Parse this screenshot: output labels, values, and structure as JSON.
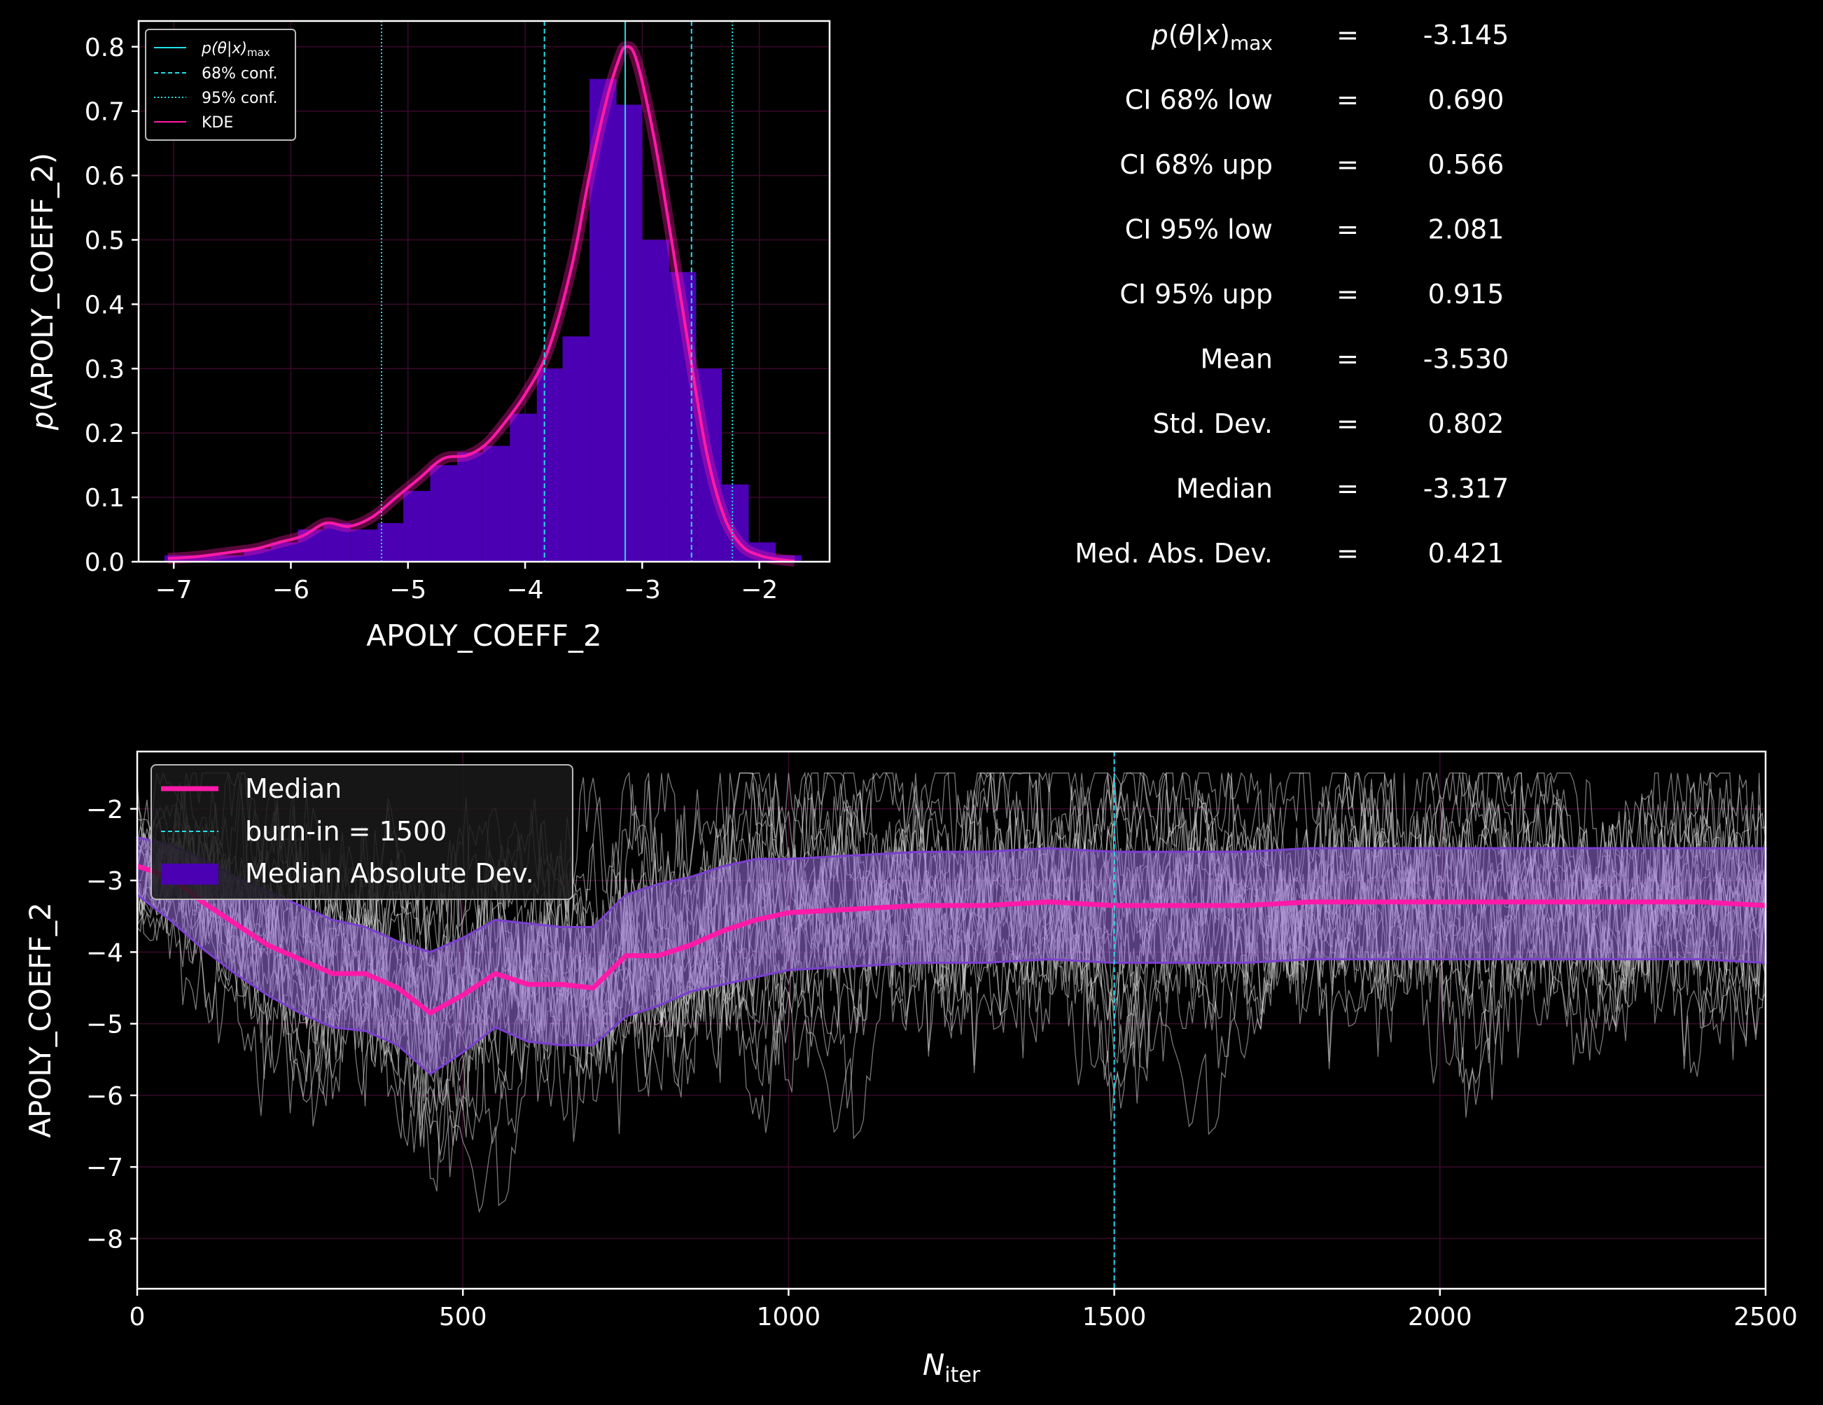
{
  "colors": {
    "background": "#000000",
    "foreground": "#ffffff",
    "kde": "#ff1aa8",
    "hist_fill": "#4b00b4",
    "conf_lines": "#20e0e8",
    "median_line": "#ff1aa8",
    "mad_band": "#9a6fe0",
    "mad_band_dark": "#3d0a80",
    "walkers": "#d8d8d8"
  },
  "stats": [
    {
      "label_html": "p(θ|x)<tspan baseline-shift=\"-30%\" font-size=\"28\">max</tspan>",
      "label": "p(θ|x)max",
      "eq": "=",
      "value": "-3.145"
    },
    {
      "label": "CI 68% low",
      "eq": "=",
      "value": "0.690"
    },
    {
      "label": "CI 68% upp",
      "eq": "=",
      "value": "0.566"
    },
    {
      "label": "CI 95% low",
      "eq": "=",
      "value": "2.081"
    },
    {
      "label": "CI 95% upp",
      "eq": "=",
      "value": "0.915"
    },
    {
      "label": "Mean",
      "eq": "=",
      "value": "-3.530"
    },
    {
      "label": "Std.  Dev.",
      "eq": "=",
      "value": "0.802"
    },
    {
      "label": "Median",
      "eq": "=",
      "value": "-3.317"
    },
    {
      "label": "Med. Abs. Dev.",
      "eq": "=",
      "value": "0.421"
    }
  ],
  "chart_data": [
    {
      "type": "bar",
      "subtype": "histogram_with_kde",
      "xlabel": "APOLY_COEFF_2",
      "ylabel": "p(APOLY_COEFF_2)",
      "xlim": [
        -7.3,
        -1.4
      ],
      "ylim": [
        0.0,
        0.84
      ],
      "xticks": [
        -7,
        -6,
        -5,
        -4,
        -3,
        -2
      ],
      "xtick_labels": [
        "−7",
        "−6",
        "−5",
        "−4",
        "−3",
        "−2"
      ],
      "yticks": [
        0.0,
        0.1,
        0.2,
        0.3,
        0.4,
        0.5,
        0.6,
        0.7,
        0.8
      ],
      "ytick_labels": [
        "0.0",
        "0.1",
        "0.2",
        "0.3",
        "0.4",
        "0.5",
        "0.6",
        "0.7",
        "0.8"
      ],
      "grid": true,
      "legend_placement": "top-left",
      "legend": [
        {
          "name": "p(θ|x)max",
          "style": "solid-cyan"
        },
        {
          "name": "68% conf.",
          "style": "dashed-cyan"
        },
        {
          "name": "95% conf.",
          "style": "dotted-cyan"
        },
        {
          "name": "KDE",
          "style": "solid-magenta"
        }
      ],
      "hist_bins": {
        "edges": [
          -7.08,
          -6.85,
          -6.62,
          -6.4,
          -6.17,
          -5.94,
          -5.72,
          -5.49,
          -5.26,
          -5.04,
          -4.81,
          -4.58,
          -4.36,
          -4.13,
          -3.9,
          -3.68,
          -3.45,
          -3.22,
          -3.0,
          -2.77,
          -2.54,
          -2.32,
          -2.09,
          -1.86,
          -1.64
        ],
        "values": [
          0.01,
          0.01,
          0.01,
          0.02,
          0.03,
          0.05,
          0.06,
          0.05,
          0.06,
          0.11,
          0.15,
          0.17,
          0.18,
          0.23,
          0.3,
          0.35,
          0.75,
          0.71,
          0.5,
          0.45,
          0.3,
          0.12,
          0.03,
          0.01
        ]
      },
      "kde": {
        "x": [
          -7.05,
          -6.8,
          -6.5,
          -6.3,
          -6.1,
          -5.9,
          -5.7,
          -5.5,
          -5.3,
          -5.1,
          -4.9,
          -4.7,
          -4.5,
          -4.35,
          -4.2,
          -4.0,
          -3.8,
          -3.6,
          -3.45,
          -3.3,
          -3.2,
          -3.14,
          -3.05,
          -2.9,
          -2.75,
          -2.6,
          -2.45,
          -2.3,
          -2.15,
          -2.0,
          -1.85,
          -1.7
        ],
        "y": [
          0.005,
          0.008,
          0.015,
          0.02,
          0.03,
          0.04,
          0.06,
          0.055,
          0.07,
          0.1,
          0.13,
          0.16,
          0.165,
          0.18,
          0.21,
          0.26,
          0.33,
          0.46,
          0.6,
          0.72,
          0.78,
          0.8,
          0.78,
          0.66,
          0.5,
          0.33,
          0.17,
          0.07,
          0.025,
          0.01,
          0.004,
          0.001
        ]
      },
      "vlines": {
        "max": -3.145,
        "conf68": [
          -3.835,
          -2.579
        ],
        "conf95": [
          -5.226,
          -2.23
        ]
      }
    },
    {
      "type": "line",
      "subtype": "mcmc_trace",
      "xlabel": "N_iter",
      "ylabel": "APOLY_COEFF_2",
      "xlim": [
        0,
        2500
      ],
      "ylim": [
        -8.7,
        -1.2
      ],
      "xticks": [
        0,
        500,
        1000,
        1500,
        2000,
        2500
      ],
      "xtick_labels": [
        "0",
        "500",
        "1000",
        "1500",
        "2000",
        "2500"
      ],
      "yticks": [
        -8,
        -7,
        -6,
        -5,
        -4,
        -3,
        -2
      ],
      "ytick_labels": [
        "−8",
        "−7",
        "−6",
        "−5",
        "−4",
        "−3",
        "−2"
      ],
      "grid": true,
      "legend_placement": "top-left",
      "legend": [
        {
          "name": "Median",
          "style": "solid-magenta-thick"
        },
        {
          "name": "burn-in = 1500",
          "style": "dashed-cyan"
        },
        {
          "name": "Median Absolute Dev.",
          "style": "purple-patch"
        }
      ],
      "burn_in": 1500,
      "median": {
        "x": [
          0,
          50,
          100,
          150,
          200,
          250,
          300,
          350,
          400,
          450,
          500,
          550,
          600,
          650,
          700,
          750,
          800,
          850,
          900,
          950,
          1000,
          1100,
          1200,
          1300,
          1400,
          1500,
          1600,
          1700,
          1800,
          1900,
          2000,
          2100,
          2200,
          2300,
          2400,
          2500
        ],
        "y": [
          -2.8,
          -2.95,
          -3.3,
          -3.6,
          -3.9,
          -4.1,
          -4.3,
          -4.3,
          -4.5,
          -4.85,
          -4.6,
          -4.3,
          -4.45,
          -4.45,
          -4.5,
          -4.05,
          -4.05,
          -3.9,
          -3.7,
          -3.55,
          -3.45,
          -3.4,
          -3.35,
          -3.35,
          -3.3,
          -3.35,
          -3.35,
          -3.35,
          -3.3,
          -3.3,
          -3.3,
          -3.3,
          -3.3,
          -3.3,
          -3.3,
          -3.35
        ]
      },
      "mad_upper": {
        "x": [
          0,
          50,
          100,
          150,
          200,
          250,
          300,
          350,
          400,
          450,
          500,
          550,
          600,
          650,
          700,
          750,
          800,
          850,
          900,
          950,
          1000,
          1100,
          1200,
          1300,
          1400,
          1500,
          1600,
          1700,
          1800,
          1900,
          2000,
          2100,
          2200,
          2300,
          2400,
          2500
        ],
        "y": [
          -2.4,
          -2.5,
          -2.7,
          -2.95,
          -3.15,
          -3.35,
          -3.55,
          -3.65,
          -3.85,
          -4.0,
          -3.8,
          -3.55,
          -3.6,
          -3.65,
          -3.65,
          -3.2,
          -3.05,
          -2.95,
          -2.8,
          -2.7,
          -2.7,
          -2.65,
          -2.6,
          -2.6,
          -2.55,
          -2.6,
          -2.6,
          -2.6,
          -2.55,
          -2.55,
          -2.55,
          -2.55,
          -2.55,
          -2.55,
          -2.55,
          -2.55
        ]
      },
      "mad_lower": {
        "x": [
          0,
          50,
          100,
          150,
          200,
          250,
          300,
          350,
          400,
          450,
          500,
          550,
          600,
          650,
          700,
          750,
          800,
          850,
          900,
          950,
          1000,
          1100,
          1200,
          1300,
          1400,
          1500,
          1600,
          1700,
          1800,
          1900,
          2000,
          2100,
          2200,
          2300,
          2400,
          2500
        ],
        "y": [
          -3.2,
          -3.55,
          -3.95,
          -4.3,
          -4.6,
          -4.85,
          -5.05,
          -5.1,
          -5.3,
          -5.7,
          -5.4,
          -5.05,
          -5.25,
          -5.3,
          -5.3,
          -4.9,
          -4.75,
          -4.55,
          -4.45,
          -4.35,
          -4.25,
          -4.2,
          -4.15,
          -4.15,
          -4.1,
          -4.15,
          -4.15,
          -4.15,
          -4.1,
          -4.1,
          -4.1,
          -4.1,
          -4.1,
          -4.1,
          -4.1,
          -4.15
        ]
      }
    }
  ],
  "labels": {
    "hist_xlabel": "APOLY_COEFF_2",
    "hist_ylabel": "p(APOLY_COEFF_2)",
    "trace_ylabel": "APOLY_COEFF_2",
    "trace_xlabel": "N",
    "trace_xlabel_sub": "iter",
    "legend1_max": "p(θ|x)",
    "legend1_max_sub": "max",
    "legend1_68": "68% conf.",
    "legend1_95": "95% conf.",
    "legend1_kde": "KDE",
    "legend2_median": "Median",
    "legend2_burnin": "burn-in = 1500",
    "legend2_mad": "Median Absolute Dev."
  }
}
